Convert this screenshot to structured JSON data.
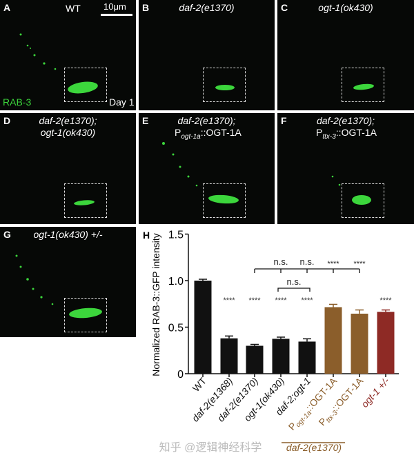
{
  "panels": [
    {
      "letter": "A",
      "genotype": "WT",
      "scale_bar": "10μm",
      "marker": "RAB-3",
      "age": "Day 1"
    },
    {
      "letter": "B",
      "genotype": "daf-2(e1370)"
    },
    {
      "letter": "C",
      "genotype": "ogt-1(ok430)"
    },
    {
      "letter": "D",
      "genotype_line1": "daf-2(e1370);",
      "genotype_line2": "ogt-1(ok430)"
    },
    {
      "letter": "E",
      "genotype_line1": "daf-2(e1370);",
      "promoter": "P",
      "promoter_sub": "ogt-1a",
      "construct": "::OGT-1A"
    },
    {
      "letter": "F",
      "genotype_line1": "daf-2(e1370);",
      "promoter": "P",
      "promoter_sub": "ttx-3",
      "construct": "::OGT-1A"
    },
    {
      "letter": "G",
      "genotype": "ogt-1(ok430) +/-"
    }
  ],
  "colors": {
    "gfp": "#3cd63c",
    "black_bar": "#111111",
    "brown_bar": "#8b5e2b",
    "red_bar": "#8e2a25"
  },
  "chart_data": {
    "type": "bar",
    "panel_letter": "H",
    "ylabel": "Normalized  RAB-3::GFP intensity",
    "ylim": [
      0,
      1.5
    ],
    "yticks": [
      {
        "v": 0,
        "label": "0"
      },
      {
        "v": 0.5,
        "label": "0.5"
      },
      {
        "v": 1.0,
        "label": "1.0"
      },
      {
        "v": 1.5,
        "label": "1.5"
      }
    ],
    "categories": [
      "WT",
      "daf-2(e1368)",
      "daf-2(e1370)",
      "ogt-1(ok430)",
      "daf-2;ogt-1",
      "Pogt-1a::OGT-1A",
      "Pttx-3::OGT-1A",
      "ogt-1 +/-"
    ],
    "category_parts": [
      {
        "main": "WT"
      },
      {
        "main": "daf-2(e1368)"
      },
      {
        "main": "daf-2(e1370)"
      },
      {
        "main": "ogt-1(ok430)"
      },
      {
        "main": "daf-2;ogt-1"
      },
      {
        "p": "P",
        "sub": "ogt-1a",
        "main": "::OGT-1A"
      },
      {
        "p": "P",
        "sub": "ttx-3",
        "main": "::OGT-1A"
      },
      {
        "main": "ogt-1 +/-"
      }
    ],
    "values": [
      1.0,
      0.38,
      0.3,
      0.375,
      0.345,
      0.715,
      0.645,
      0.665
    ],
    "errors": [
      0.015,
      0.025,
      0.015,
      0.018,
      0.03,
      0.03,
      0.04,
      0.02
    ],
    "bar_colors": [
      "#111111",
      "#111111",
      "#111111",
      "#111111",
      "#111111",
      "#8b5e2b",
      "#8b5e2b",
      "#8e2a25"
    ],
    "label_colors": [
      "#111",
      "#111",
      "#111",
      "#111",
      "#111",
      "#8b5e2b",
      "#8b5e2b",
      "#8e2a25"
    ],
    "significance": [
      "",
      "****",
      "****",
      "****",
      "****",
      "",
      "",
      "****"
    ],
    "brackets": [
      {
        "from": 2,
        "to": 6,
        "level": "upper",
        "ticks": [
          3,
          4,
          5,
          6
        ],
        "labels": [
          "n.s.",
          "n.s.",
          "****",
          "****"
        ]
      },
      {
        "from": 3,
        "to": 4,
        "level": "lower",
        "label": "n.s."
      }
    ],
    "group_label": "daf-2(e1370)"
  },
  "watermark": "知乎 @逻辑神经科学"
}
